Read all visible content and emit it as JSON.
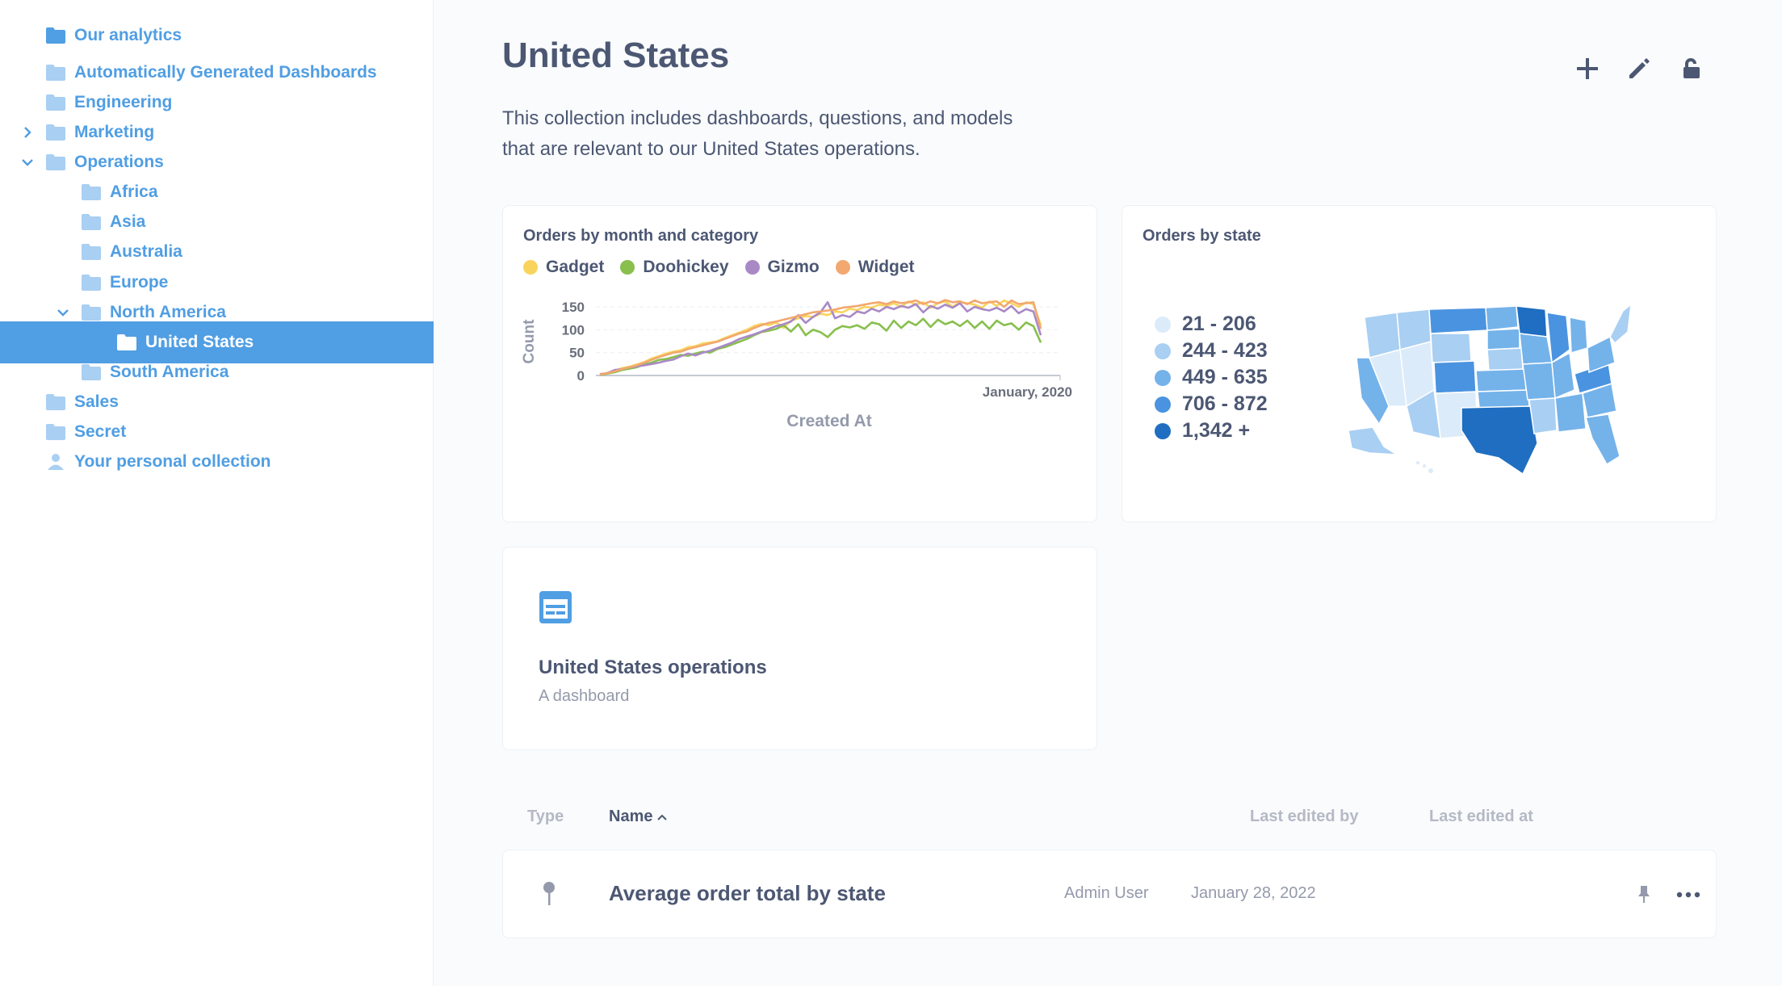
{
  "sidebar": {
    "items": [
      {
        "label": "Our analytics",
        "depth": 0,
        "icon": "folder-icon",
        "chevron": "none",
        "active": false
      },
      {
        "label": "Automatically Generated Dashboards",
        "depth": 0,
        "icon": "folder-icon",
        "chevron": "none",
        "active": false
      },
      {
        "label": "Engineering",
        "depth": 0,
        "icon": "folder-icon",
        "chevron": "none",
        "active": false
      },
      {
        "label": "Marketing",
        "depth": 0,
        "icon": "folder-icon",
        "chevron": "right",
        "active": false
      },
      {
        "label": "Operations",
        "depth": 0,
        "icon": "folder-icon",
        "chevron": "down",
        "active": false
      },
      {
        "label": "Africa",
        "depth": 1,
        "icon": "folder-icon",
        "chevron": "none",
        "active": false
      },
      {
        "label": "Asia",
        "depth": 1,
        "icon": "folder-icon",
        "chevron": "none",
        "active": false
      },
      {
        "label": "Australia",
        "depth": 1,
        "icon": "folder-icon",
        "chevron": "none",
        "active": false
      },
      {
        "label": "Europe",
        "depth": 1,
        "icon": "folder-icon",
        "chevron": "none",
        "active": false
      },
      {
        "label": "North America",
        "depth": 1,
        "icon": "folder-icon",
        "chevron": "down",
        "active": false
      },
      {
        "label": "United States",
        "depth": 2,
        "icon": "folder-icon",
        "chevron": "none",
        "active": true
      },
      {
        "label": "South America",
        "depth": 1,
        "icon": "folder-icon",
        "chevron": "none",
        "active": false
      },
      {
        "label": "Sales",
        "depth": 0,
        "icon": "folder-icon",
        "chevron": "none",
        "active": false
      },
      {
        "label": "Secret",
        "depth": 0,
        "icon": "folder-icon",
        "chevron": "none",
        "active": false
      },
      {
        "label": "Your personal collection",
        "depth": 0,
        "icon": "person-icon",
        "chevron": "none",
        "active": false
      }
    ]
  },
  "header": {
    "title": "United States",
    "description": "This collection includes dashboards, questions, and models that are relevant to our United States operations.",
    "actions": [
      {
        "name": "add-button",
        "icon": "plus-icon"
      },
      {
        "name": "edit-button",
        "icon": "pencil-icon"
      },
      {
        "name": "permissions-button",
        "icon": "unlock-icon"
      }
    ]
  },
  "cards": {
    "orders_by_month": {
      "title": "Orders by month and category"
    },
    "orders_by_state": {
      "title": "Orders by state"
    },
    "dashboard": {
      "title": "United States operations",
      "subtitle": "A dashboard"
    }
  },
  "colors": {
    "brand": "#509ee3",
    "text": "#4c5773",
    "muted": "#949aab",
    "gadget": "#f9d45c",
    "doohickey": "#88bf4d",
    "gizmo": "#a989c5",
    "widget": "#f2a86f"
  },
  "chart_data": [
    {
      "type": "line",
      "title": "Orders by month and category",
      "xlabel": "Created At",
      "ylabel": "Count",
      "x_tick_labels": [
        "January, 2020"
      ],
      "y_ticks": [
        0,
        50,
        100,
        150
      ],
      "ylim": [
        0,
        160
      ],
      "grid": true,
      "legend": "top",
      "series": [
        {
          "name": "Gadget",
          "color": "#f9d45c",
          "values": [
            2,
            6,
            10,
            16,
            19,
            24,
            29,
            37,
            42,
            48,
            52,
            55,
            62,
            64,
            70,
            72,
            75,
            82,
            88,
            94,
            100,
            108,
            113,
            110,
            116,
            104,
            120,
            125,
            130,
            128,
            135,
            132,
            140,
            138,
            146,
            143,
            150,
            148,
            155,
            152,
            158,
            150,
            162,
            155,
            160,
            148,
            158,
            162,
            150,
            160,
            158,
            155,
            148,
            162,
            152,
            164,
            158,
            150,
            160,
            156,
            110
          ]
        },
        {
          "name": "Doohickey",
          "color": "#88bf4d",
          "values": [
            1,
            4,
            7,
            12,
            15,
            18,
            24,
            28,
            34,
            36,
            40,
            45,
            43,
            48,
            52,
            50,
            58,
            62,
            68,
            74,
            80,
            88,
            95,
            98,
            102,
            110,
            96,
            112,
            88,
            100,
            95,
            84,
            100,
            108,
            105,
            110,
            102,
            116,
            112,
            98,
            120,
            104,
            118,
            110,
            124,
            106,
            122,
            112,
            118,
            108,
            120,
            104,
            118,
            102,
            120,
            110,
            114,
            100,
            116,
            108,
            72
          ]
        },
        {
          "name": "Gizmo",
          "color": "#a989c5",
          "values": [
            3,
            5,
            12,
            14,
            18,
            20,
            22,
            25,
            28,
            32,
            35,
            42,
            48,
            44,
            50,
            54,
            60,
            66,
            72,
            80,
            85,
            90,
            96,
            102,
            108,
            112,
            118,
            132,
            115,
            128,
            138,
            160,
            125,
            132,
            128,
            140,
            136,
            146,
            140,
            150,
            145,
            152,
            148,
            156,
            138,
            152,
            146,
            155,
            148,
            158,
            140,
            150,
            145,
            142,
            148,
            140,
            152,
            136,
            145,
            140,
            88
          ]
        },
        {
          "name": "Widget",
          "color": "#f2a86f",
          "values": [
            2,
            5,
            9,
            14,
            18,
            22,
            28,
            34,
            40,
            45,
            50,
            52,
            58,
            62,
            66,
            70,
            74,
            80,
            86,
            92,
            96,
            104,
            110,
            115,
            118,
            122,
            126,
            130,
            134,
            138,
            140,
            142,
            144,
            148,
            150,
            152,
            155,
            158,
            160,
            156,
            162,
            158,
            160,
            164,
            156,
            162,
            158,
            165,
            160,
            162,
            156,
            164,
            158,
            160,
            162,
            150,
            164,
            156,
            158,
            160,
            102
          ]
        }
      ]
    },
    {
      "type": "choropleth",
      "title": "Orders by state",
      "legend": [
        {
          "label": "21 - 206",
          "color": "#dcebfa"
        },
        {
          "label": "244 - 423",
          "color": "#a9cff2"
        },
        {
          "label": "449 - 635",
          "color": "#74b2ea"
        },
        {
          "label": "706 - 872",
          "color": "#4a93e0"
        },
        {
          "label": "1,342 +",
          "color": "#1f6ec1"
        }
      ]
    }
  ],
  "table": {
    "columns": {
      "type": "Type",
      "name": "Name",
      "last_edited_by": "Last edited by",
      "last_edited_at": "Last edited at"
    },
    "rows": [
      {
        "name": "Average order total by state",
        "last_edited_by": "Admin User",
        "last_edited_at": "January 28, 2022",
        "type_icon": "map-pin-icon"
      }
    ]
  }
}
